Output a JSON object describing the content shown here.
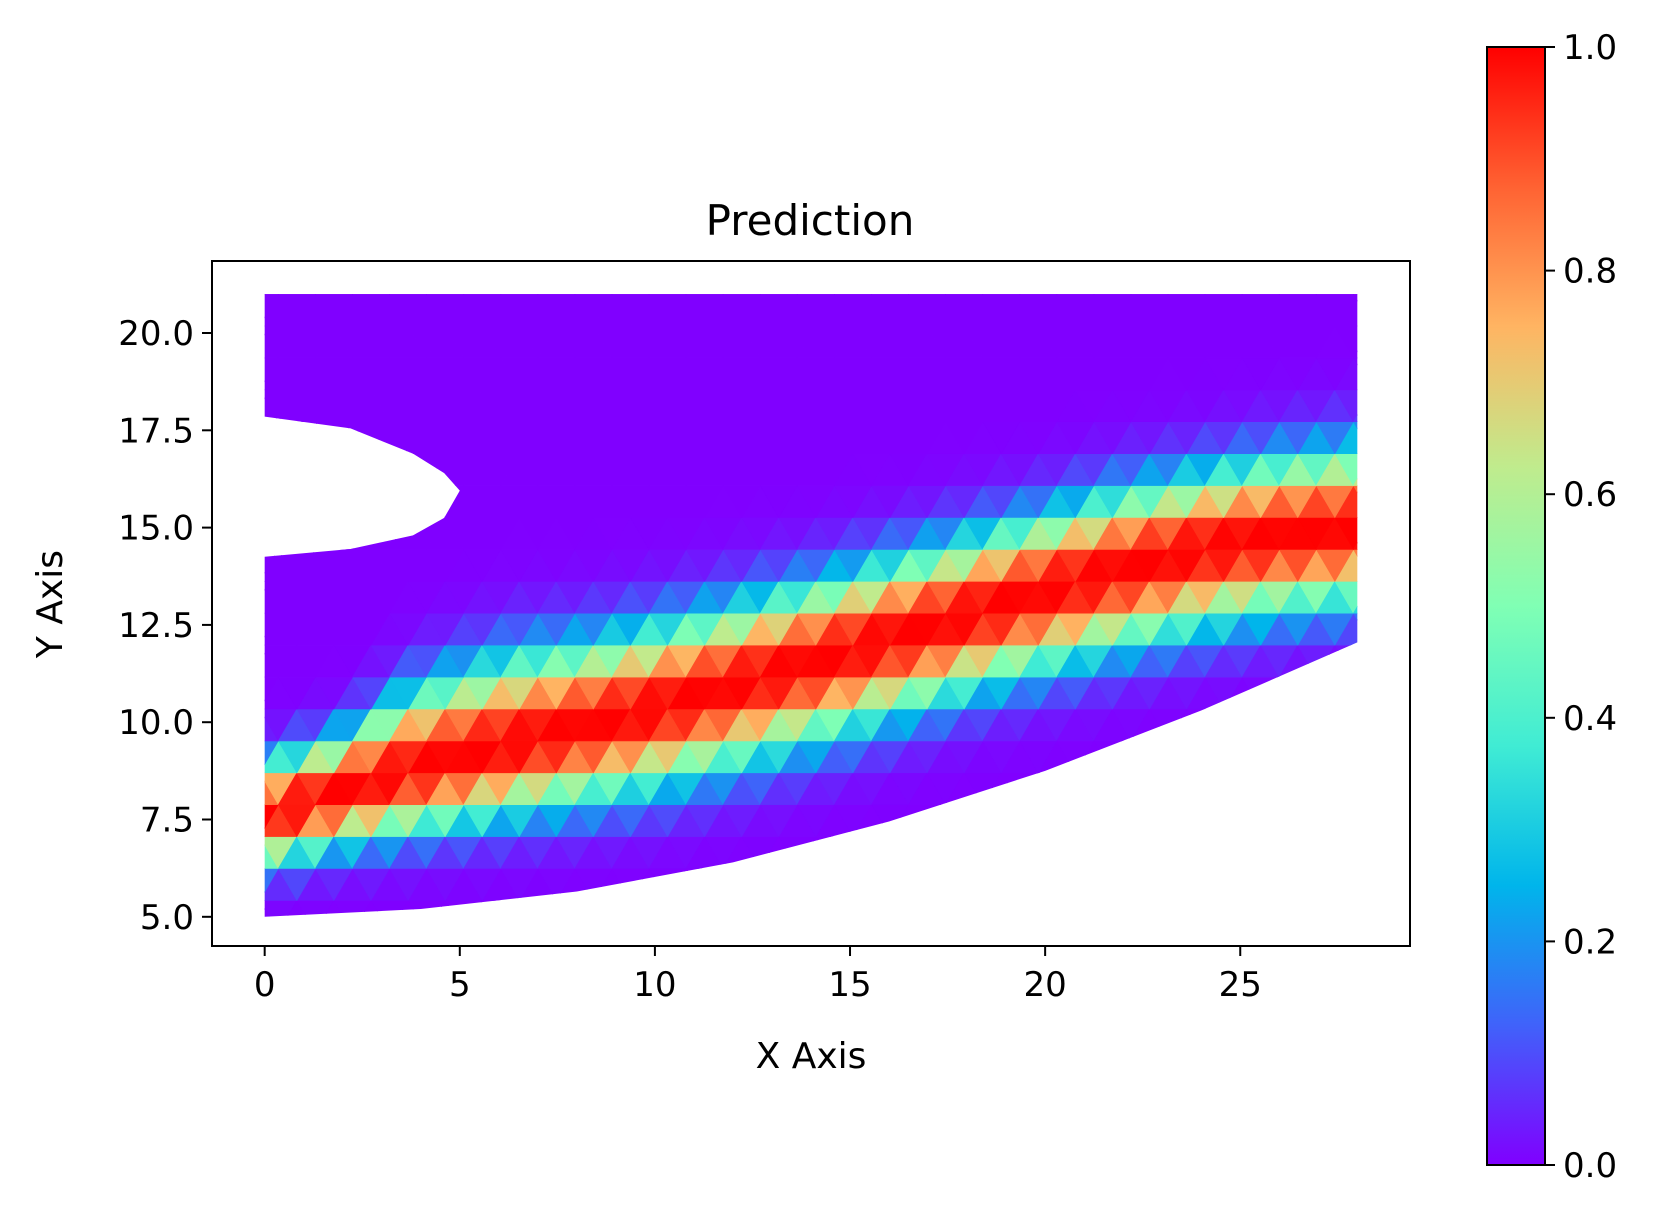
{
  "chart_data": {
    "type": "heatmap",
    "subtype": "triangulated-mesh",
    "title": "Prediction",
    "xlabel": "X Axis",
    "ylabel": "Y Axis",
    "xlim": [
      -1.35,
      29.35
    ],
    "ylim": [
      4.25,
      21.85
    ],
    "x_ticks": [
      0,
      5,
      10,
      15,
      20,
      25
    ],
    "x_tick_labels": [
      "0",
      "5",
      "10",
      "15",
      "20",
      "25"
    ],
    "y_ticks": [
      5.0,
      7.5,
      10.0,
      12.5,
      15.0,
      17.5,
      20.0
    ],
    "y_tick_labels": [
      "5.0",
      "7.5",
      "10.0",
      "12.5",
      "15.0",
      "17.5",
      "20.0"
    ],
    "grid": false,
    "domain": {
      "x_range": [
        0,
        28
      ],
      "top_y": 21,
      "bottom_boundary": [
        [
          0,
          5
        ],
        [
          4,
          5.2
        ],
        [
          8,
          5.65
        ],
        [
          12,
          6.4
        ],
        [
          16,
          7.45
        ],
        [
          20,
          8.75
        ],
        [
          24,
          10.3
        ],
        [
          28,
          12.05
        ]
      ],
      "hole_boundary": [
        [
          0,
          17.85
        ],
        [
          2.2,
          17.55
        ],
        [
          3.8,
          16.9
        ],
        [
          4.6,
          16.4
        ],
        [
          5.0,
          15.95
        ],
        [
          4.6,
          15.25
        ],
        [
          3.8,
          14.8
        ],
        [
          2.2,
          14.45
        ],
        [
          0,
          14.25
        ]
      ]
    },
    "band": {
      "description": "ridge of maximum predicted value",
      "center_line": [
        [
          0,
          7.6
        ],
        [
          2,
          8.25
        ],
        [
          4,
          8.85
        ],
        [
          6,
          9.35
        ],
        [
          8,
          9.85
        ],
        [
          10,
          10.35
        ],
        [
          12,
          10.95
        ],
        [
          14,
          11.55
        ],
        [
          16,
          12.15
        ],
        [
          18,
          12.75
        ],
        [
          20,
          13.4
        ],
        [
          22,
          13.95
        ],
        [
          24,
          14.45
        ],
        [
          26,
          14.8
        ],
        [
          28,
          15.0
        ]
      ],
      "upper_edge": [
        [
          0,
          8.95
        ],
        [
          2,
          9.7
        ],
        [
          3.5,
          10.7
        ],
        [
          5,
          11.3
        ],
        [
          6.5,
          11.75
        ],
        [
          8,
          12.0
        ],
        [
          10,
          12.45
        ],
        [
          12,
          13.0
        ],
        [
          14,
          13.55
        ],
        [
          16,
          14.15
        ],
        [
          18,
          14.75
        ],
        [
          20,
          15.35
        ],
        [
          22,
          15.95
        ],
        [
          24,
          16.4
        ],
        [
          26,
          16.8
        ],
        [
          28,
          17.05
        ]
      ],
      "lower_edge": [
        [
          0,
          6.3
        ],
        [
          2,
          6.8
        ],
        [
          4,
          7.2
        ],
        [
          6,
          7.55
        ],
        [
          8,
          7.9
        ],
        [
          10,
          8.3
        ],
        [
          12,
          8.85
        ],
        [
          14,
          9.45
        ],
        [
          16,
          10.1
        ],
        [
          18,
          10.75
        ],
        [
          20,
          11.35
        ],
        [
          22,
          11.9
        ],
        [
          24,
          12.4
        ],
        [
          26,
          12.8
        ],
        [
          28,
          13.05
        ]
      ],
      "peak_value": 1.0
    },
    "colorbar": {
      "colormap": "rainbow",
      "range": [
        0.0,
        1.0
      ],
      "ticks": [
        0.0,
        0.2,
        0.4,
        0.6,
        0.8,
        1.0
      ],
      "tick_labels": [
        "0.0",
        "0.2",
        "0.4",
        "0.6",
        "0.8",
        "1.0"
      ],
      "stops": [
        {
          "v": 0.0,
          "c": "#8000ff"
        },
        {
          "v": 0.125,
          "c": "#4062fa"
        },
        {
          "v": 0.25,
          "c": "#00b5eb"
        },
        {
          "v": 0.375,
          "c": "#40ecd4"
        },
        {
          "v": 0.5,
          "c": "#80ffb4"
        },
        {
          "v": 0.625,
          "c": "#c0eb8d"
        },
        {
          "v": 0.75,
          "c": "#ffb462"
        },
        {
          "v": 0.875,
          "c": "#ff6232"
        },
        {
          "v": 1.0,
          "c": "#ff0000"
        }
      ]
    }
  }
}
